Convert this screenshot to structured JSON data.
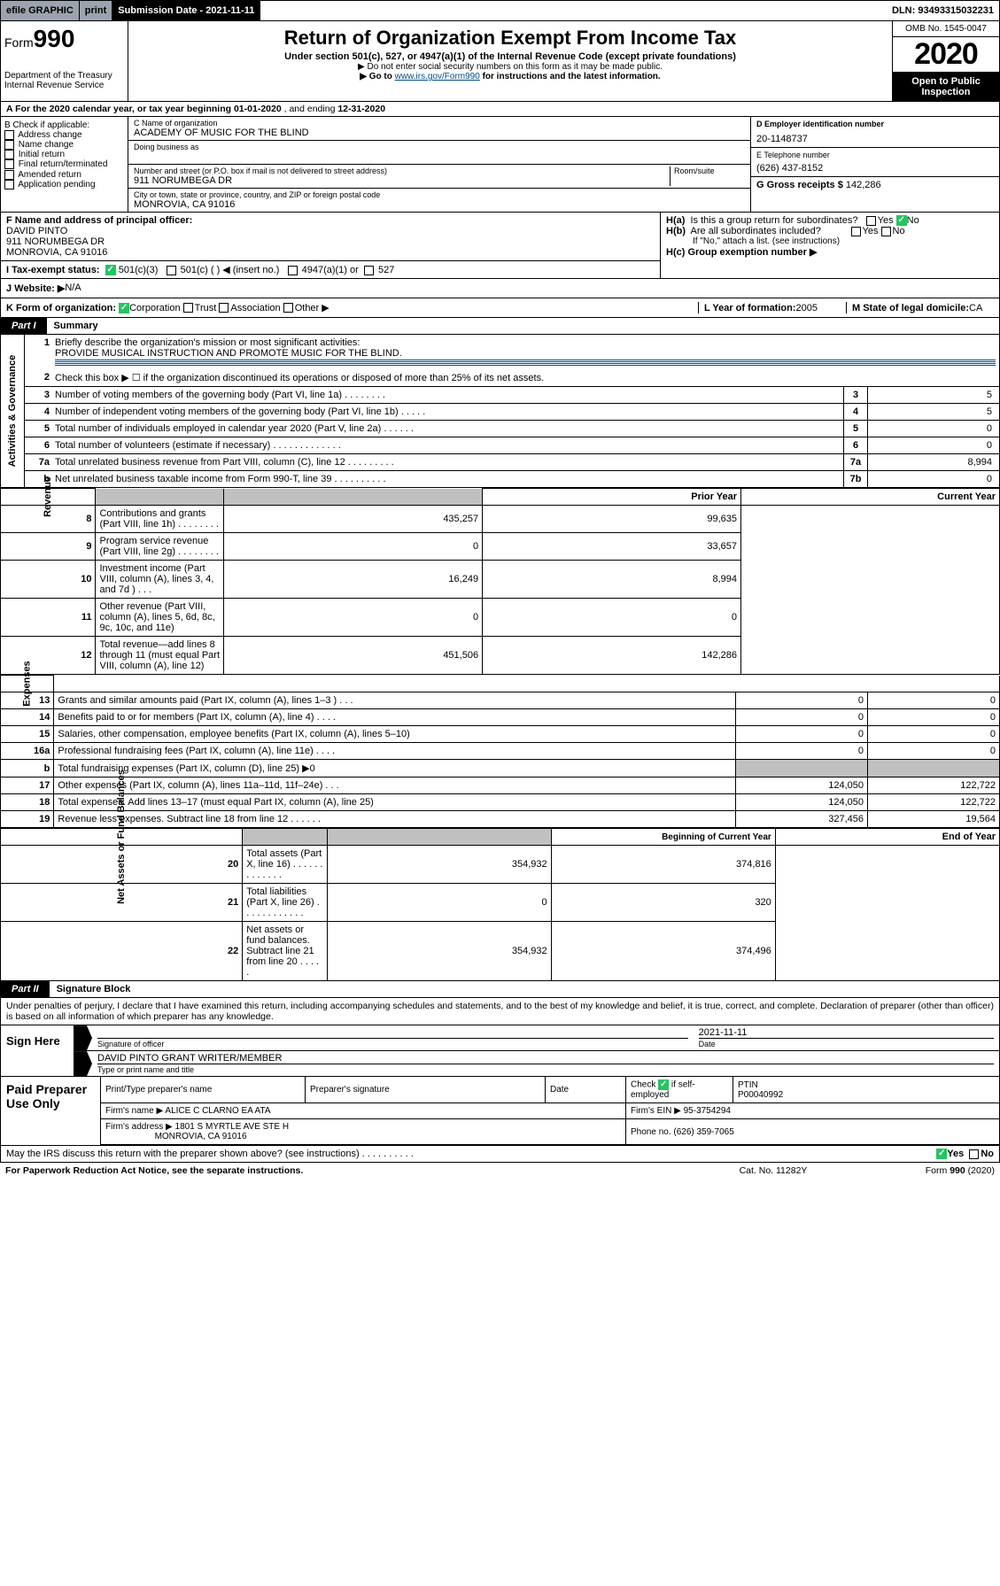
{
  "top": {
    "efile": "efile GRAPHIC",
    "print": "print",
    "sub_date": "Submission Date - 2021-11-11",
    "dln": "DLN: 93493315032231"
  },
  "hdr": {
    "form": "Form",
    "num": "990",
    "title": "Return of Organization Exempt From Income Tax",
    "sub1": "Under section 501(c), 527, or 4947(a)(1) of the Internal Revenue Code (except private foundations)",
    "sub2": "▶ Do not enter social security numbers on this form as it may be made public.",
    "sub3a": "▶ Go to ",
    "link": "www.irs.gov/Form990",
    "sub3b": " for instructions and the latest information.",
    "dept1": "Department of the Treasury",
    "dept2": "Internal Revenue Service",
    "omb": "OMB No. 1545-0047",
    "year": "2020",
    "open": "Open to Public Inspection"
  },
  "a": {
    "prefix": "A   For the 2020 calendar year, or tax year beginning ",
    "begin": "01-01-2020",
    "mid": "    , and ending ",
    "end": "12-31-2020"
  },
  "b": {
    "label": "B Check if applicable:",
    "opts": [
      "Address change",
      "Name change",
      "Initial return",
      "Final return/terminated",
      "Amended return",
      "Application pending"
    ]
  },
  "c": {
    "name_lbl": "C Name of organization",
    "name": "ACADEMY OF MUSIC FOR THE BLIND",
    "dba_lbl": "Doing business as",
    "addr_lbl": "Number and street (or P.O. box if mail is not delivered to street address)",
    "room_lbl": "Room/suite",
    "addr": "911 NORUMBEGA DR",
    "city_lbl": "City or town, state or province, country, and ZIP or foreign postal code",
    "city": "MONROVIA, CA  91016"
  },
  "d": {
    "ein_lbl": "D Employer identification number",
    "ein": "20-1148737",
    "phone_lbl": "E Telephone number",
    "phone": "(626) 437-8152",
    "gross_lbl": "G Gross receipts $ ",
    "gross": "142,286"
  },
  "f": {
    "lbl": "F  Name and address of principal officer:",
    "name": "DAVID PINTO",
    "addr1": "911 NORUMBEGA DR",
    "addr2": "MONROVIA, CA  91016"
  },
  "h": {
    "a": "H(a)  Is this a group return for subordinates?",
    "b": "H(b)  Are all subordinates included?",
    "note": "If \"No,\" attach a list. (see instructions)",
    "c": "H(c)  Group exemption number ▶",
    "yes": "Yes",
    "no": "No"
  },
  "i": {
    "lbl": "I     Tax-exempt status:",
    "o1": "501(c)(3)",
    "o2": "501(c) (    ) ◀ (insert no.)",
    "o3": "4947(a)(1) or",
    "o4": "527"
  },
  "j": {
    "lbl": "J    Website: ▶",
    "val": "  N/A"
  },
  "k": {
    "lbl": "K Form of organization:",
    "corp": "Corporation",
    "trust": "Trust",
    "assoc": "Association",
    "other": "Other ▶",
    "year_lbl": "L Year of formation: ",
    "year": "2005",
    "state_lbl": "M State of legal domicile: ",
    "state": "CA"
  },
  "p1": {
    "tab": "Part I",
    "title": "Summary"
  },
  "sum": {
    "gov_lbl": "Activities & Governance",
    "q1a": "Briefly describe the organization's mission or most significant activities:",
    "q1b": "PROVIDE MUSICAL INSTRUCTION AND PROMOTE MUSIC FOR THE BLIND.",
    "q2": "Check this box ▶ ☐  if the organization discontinued its operations or disposed of more than 25% of its net assets.",
    "rows_gov": [
      {
        "n": "3",
        "t": "Number of voting members of the governing body (Part VI, line 1a)   .    .    .    .    .    .    .    .",
        "b": "3",
        "v": "5"
      },
      {
        "n": "4",
        "t": "Number of independent voting members of the governing body (Part VI, line 1b)    .    .    .    .    .",
        "b": "4",
        "v": "5"
      },
      {
        "n": "5",
        "t": "Total number of individuals employed in calendar year 2020 (Part V, line 2a)    .    .    .    .    .    .",
        "b": "5",
        "v": "0"
      },
      {
        "n": "6",
        "t": "Total number of volunteers (estimate if necessary)    .    .    .    .    .    .    .    .    .    .    .    .    .",
        "b": "6",
        "v": "0"
      },
      {
        "n": "7a",
        "t": "Total unrelated business revenue from Part VIII, column (C), line 12   .    .    .    .    .    .    .    .    .",
        "b": "7a",
        "v": "8,994"
      },
      {
        "n": "b",
        "t": "Net unrelated business taxable income from Form 990-T, line 39   .    .    .    .    .    .    .    .    .    .",
        "b": "7b",
        "v": "0"
      }
    ],
    "rev_lbl": "Revenue",
    "prior": "Prior Year",
    "curr": "Current Year",
    "rows_rev": [
      {
        "n": "8",
        "t": "Contributions and grants (Part VIII, line 1h)    .    .    .    .    .    .    .    .",
        "p": "435,257",
        "c": "99,635"
      },
      {
        "n": "9",
        "t": "Program service revenue (Part VIII, line 2g)    .    .    .    .    .    .    .    .",
        "p": "0",
        "c": "33,657"
      },
      {
        "n": "10",
        "t": "Investment income (Part VIII, column (A), lines 3, 4, and 7d )    .    .    .",
        "p": "16,249",
        "c": "8,994"
      },
      {
        "n": "11",
        "t": "Other revenue (Part VIII, column (A), lines 5, 6d, 8c, 9c, 10c, and 11e)",
        "p": "0",
        "c": "0"
      },
      {
        "n": "12",
        "t": "Total revenue—add lines 8 through 11 (must equal Part VIII, column (A), line 12)",
        "p": "451,506",
        "c": "142,286"
      }
    ],
    "exp_lbl": "Expenses",
    "rows_exp": [
      {
        "n": "13",
        "t": "Grants and similar amounts paid (Part IX, column (A), lines 1–3 )    .    .    .",
        "p": "0",
        "c": "0"
      },
      {
        "n": "14",
        "t": "Benefits paid to or for members (Part IX, column (A), line 4)    .    .    .    .",
        "p": "0",
        "c": "0"
      },
      {
        "n": "15",
        "t": "Salaries, other compensation, employee benefits (Part IX, column (A), lines 5–10)",
        "p": "0",
        "c": "0"
      },
      {
        "n": "16a",
        "t": "Professional fundraising fees (Part IX, column (A), line 11e)    .    .    .    .",
        "p": "0",
        "c": "0"
      },
      {
        "n": "b",
        "t": "Total fundraising expenses (Part IX, column (D), line 25) ▶0",
        "p": "",
        "c": "",
        "grey": true
      },
      {
        "n": "17",
        "t": "Other expenses (Part IX, column (A), lines 11a–11d, 11f–24e)    .    .    .",
        "p": "124,050",
        "c": "122,722"
      },
      {
        "n": "18",
        "t": "Total expenses. Add lines 13–17 (must equal Part IX, column (A), line 25)",
        "p": "124,050",
        "c": "122,722"
      },
      {
        "n": "19",
        "t": "Revenue less expenses. Subtract line 18 from line 12    .    .    .    .    .    .",
        "p": "327,456",
        "c": "19,564"
      }
    ],
    "net_lbl": "Net Assets or Fund Balances",
    "beg": "Beginning of Current Year",
    "end": "End of Year",
    "rows_net": [
      {
        "n": "20",
        "t": "Total assets (Part X, line 16)    .    .    .    .    .    .    .    .    .    .    .    .    .",
        "p": "354,932",
        "c": "374,816"
      },
      {
        "n": "21",
        "t": "Total liabilities (Part X, line 26)    .    .    .    .    .    .    .    .    .    .    .    .",
        "p": "0",
        "c": "320"
      },
      {
        "n": "22",
        "t": "Net assets or fund balances. Subtract line 21 from line 20    .    .    .    .    .",
        "p": "354,932",
        "c": "374,496"
      }
    ]
  },
  "p2": {
    "tab": "Part II",
    "title": "Signature Block"
  },
  "decl": "Under penalties of perjury, I declare that I have examined this return, including accompanying schedules and statements, and to the best of my knowledge and belief, it is true, correct, and complete. Declaration of preparer (other than officer) is based on all information of which preparer has any knowledge.",
  "sign": {
    "here": "Sign Here",
    "sig_lbl": "Signature of officer",
    "date_lbl": "Date",
    "date": "2021-11-11",
    "name": "DAVID PINTO  GRANT WRITER/MEMBER",
    "name_lbl": "Type or print name and title"
  },
  "prep": {
    "lbl": "Paid Preparer Use Only",
    "h1": "Print/Type preparer's name",
    "h2": "Preparer's signature",
    "h3": "Date",
    "h4a": "Check",
    "h4b": "if self-employed",
    "h5": "PTIN",
    "ptin": "P00040992",
    "firm_lbl": "Firm's name      ▶",
    "firm": "ALICE C CLARNO EA ATA",
    "ein_lbl": "Firm's EIN ▶ ",
    "ein": "95-3754294",
    "addr_lbl": "Firm's address ▶",
    "addr1": "1801 S MYRTLE AVE STE H",
    "addr2": "MONROVIA, CA  91016",
    "phone_lbl": "Phone no. ",
    "phone": "(626) 359-7065"
  },
  "foot": {
    "q": "May the IRS discuss this return with the preparer shown above? (see instructions)    .    .    .    .    .    .    .    .    .    .",
    "yes": "Yes",
    "no": "No",
    "pra": "For Paperwork Reduction Act Notice, see the separate instructions.",
    "cat": "Cat. No. 11282Y",
    "form": "Form 990 (2020)"
  }
}
